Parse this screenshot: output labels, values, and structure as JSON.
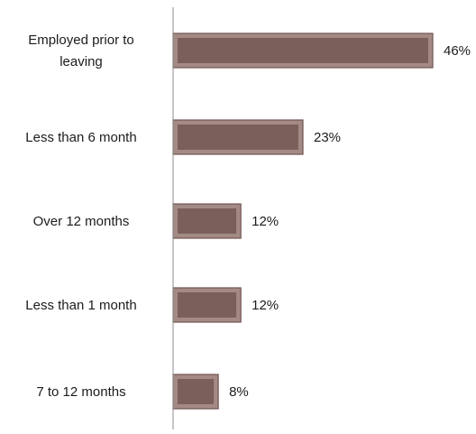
{
  "chart_data": {
    "type": "bar",
    "orientation": "horizontal",
    "categories": [
      [
        "Employed prior to",
        "leaving"
      ],
      [
        "Less than 6 month"
      ],
      [
        "Over 12 months"
      ],
      [
        "Less than 1 month"
      ],
      [
        "7 to 12 months"
      ]
    ],
    "values": [
      46,
      23,
      12,
      12,
      8
    ],
    "value_labels": [
      "46%",
      "23%",
      "12%",
      "12%",
      "8%"
    ],
    "title": "",
    "xlabel": "",
    "ylabel": "",
    "xlim": [
      0,
      46
    ],
    "grid": false,
    "legend": "none",
    "colors": {
      "bar_fill": "#7a5f5a",
      "bar_border": "#a48a85",
      "axis": "#8c8c8c"
    }
  }
}
